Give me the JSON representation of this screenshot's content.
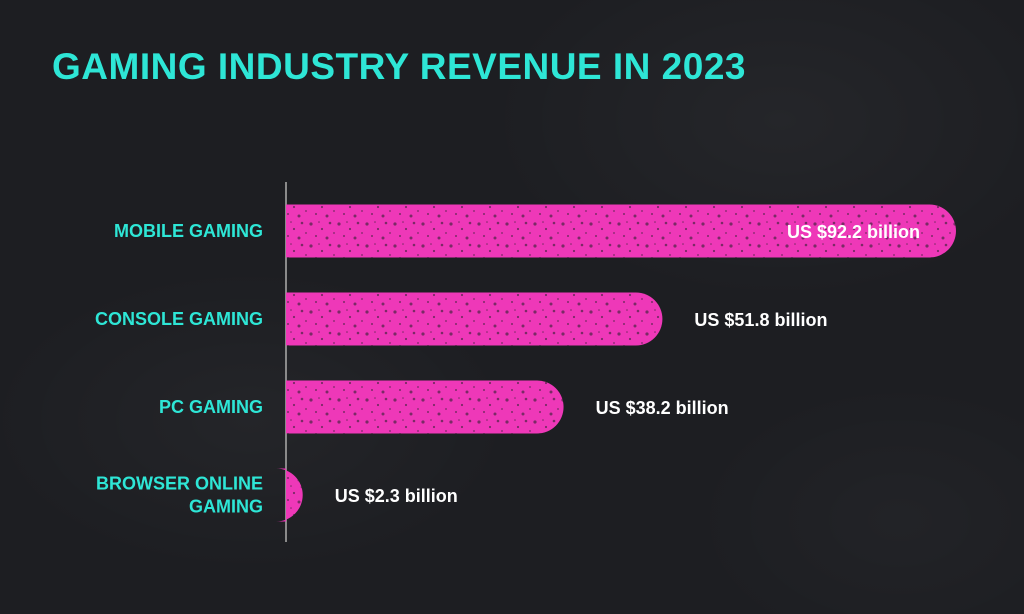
{
  "chart_data": {
    "type": "bar",
    "orientation": "horizontal",
    "title": "GAMING INDUSTRY REVENUE IN 2023",
    "categories": [
      [
        "MOBILE GAMING"
      ],
      [
        "CONSOLE GAMING"
      ],
      [
        "PC GAMING"
      ],
      [
        "BROWSER ONLINE",
        "GAMING"
      ]
    ],
    "values": [
      92.2,
      51.8,
      38.2,
      2.3
    ],
    "value_labels": [
      "US $92.2 billion",
      "US $51.8 billion",
      "US $38.2 billion",
      "US $2.3 billion"
    ],
    "unit": "US $ billion",
    "grid": false,
    "legend": "none"
  },
  "colors": {
    "background": "#1d1e22",
    "title": "#2ee6d6",
    "category_label": "#2ee6d6",
    "bar": "#ee38b8",
    "value_label": "#ffffff",
    "axis": "#8a8a8a"
  }
}
